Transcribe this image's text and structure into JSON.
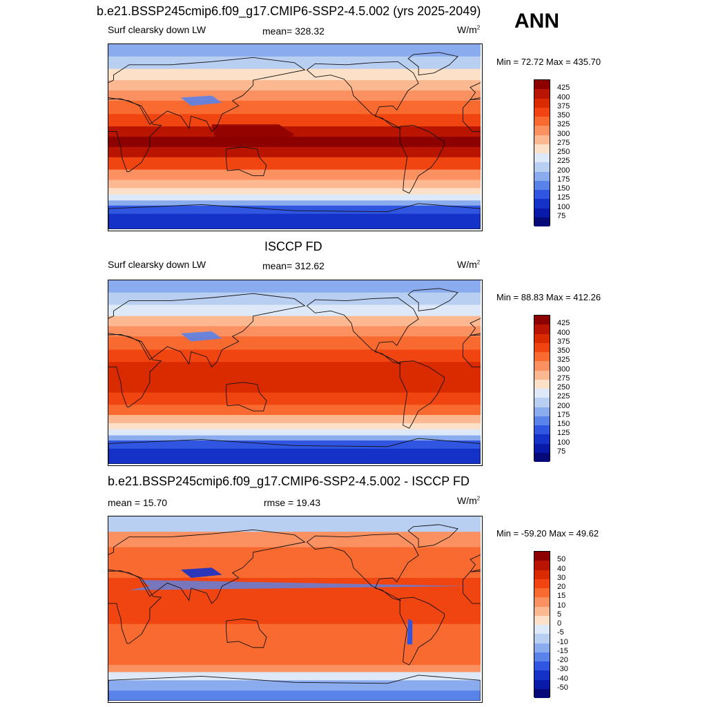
{
  "header": {
    "title": "b.e21.BSSP245cmip6.f09_g17.CMIP6-SSP2-4.5.002 (yrs 2025-2049)",
    "season": "ANN"
  },
  "chart_data": [
    {
      "type": "heatmap",
      "kind": "global-map",
      "title": "",
      "left_label": "Surf clearsky down LW",
      "center_label": "mean= 328.32",
      "units_base": "W/m",
      "units_exp": "2",
      "stats": "Min =  72.72 Max = 435.70",
      "colorbar": {
        "levels": [
          "425",
          "400",
          "375",
          "350",
          "325",
          "300",
          "275",
          "250",
          "225",
          "200",
          "175",
          "150",
          "125",
          "100",
          "75"
        ],
        "colors": [
          "#8c0000",
          "#b81400",
          "#d92a00",
          "#f04510",
          "#f86a30",
          "#fb9060",
          "#fcb890",
          "#fde0c8",
          "#dde9f8",
          "#b8cff2",
          "#8aacee",
          "#5a83ea",
          "#3055e0",
          "#1432c8",
          "#0a1aa8",
          "#050a78"
        ]
      }
    },
    {
      "type": "heatmap",
      "kind": "global-map",
      "title": "ISCCP FD",
      "left_label": "Surf clearsky down LW",
      "center_label": "mean= 312.62",
      "units_base": "W/m",
      "units_exp": "2",
      "stats": "Min =  88.83 Max = 412.26",
      "colorbar": {
        "levels": [
          "425",
          "400",
          "375",
          "350",
          "325",
          "300",
          "275",
          "250",
          "225",
          "200",
          "175",
          "150",
          "125",
          "100",
          "75"
        ],
        "colors": [
          "#8c0000",
          "#b81400",
          "#d92a00",
          "#f04510",
          "#f86a30",
          "#fb9060",
          "#fcb890",
          "#fde0c8",
          "#dde9f8",
          "#b8cff2",
          "#8aacee",
          "#5a83ea",
          "#3055e0",
          "#1432c8",
          "#0a1aa8",
          "#050a78"
        ]
      }
    },
    {
      "type": "heatmap",
      "kind": "global-map-difference",
      "title": "b.e21.BSSP245cmip6.f09_g17.CMIP6-SSP2-4.5.002 - ISCCP FD",
      "left_label": "mean =  15.70",
      "center_label": "rmse =  19.43",
      "units_base": "W/m",
      "units_exp": "2",
      "stats": "Min = -59.20 Max =  49.62",
      "colorbar": {
        "levels": [
          "50",
          "40",
          "30",
          "20",
          "15",
          "10",
          "5",
          "0",
          "-5",
          "-10",
          "-15",
          "-20",
          "-30",
          "-40",
          "-50"
        ],
        "colors": [
          "#8c0000",
          "#b81400",
          "#d92a00",
          "#f04510",
          "#f86a30",
          "#fb9060",
          "#fcb890",
          "#fde0c8",
          "#dde9f8",
          "#b8cff2",
          "#8aacee",
          "#5a83ea",
          "#3055e0",
          "#1432c8",
          "#0a1aa8",
          "#050a78"
        ]
      }
    }
  ]
}
